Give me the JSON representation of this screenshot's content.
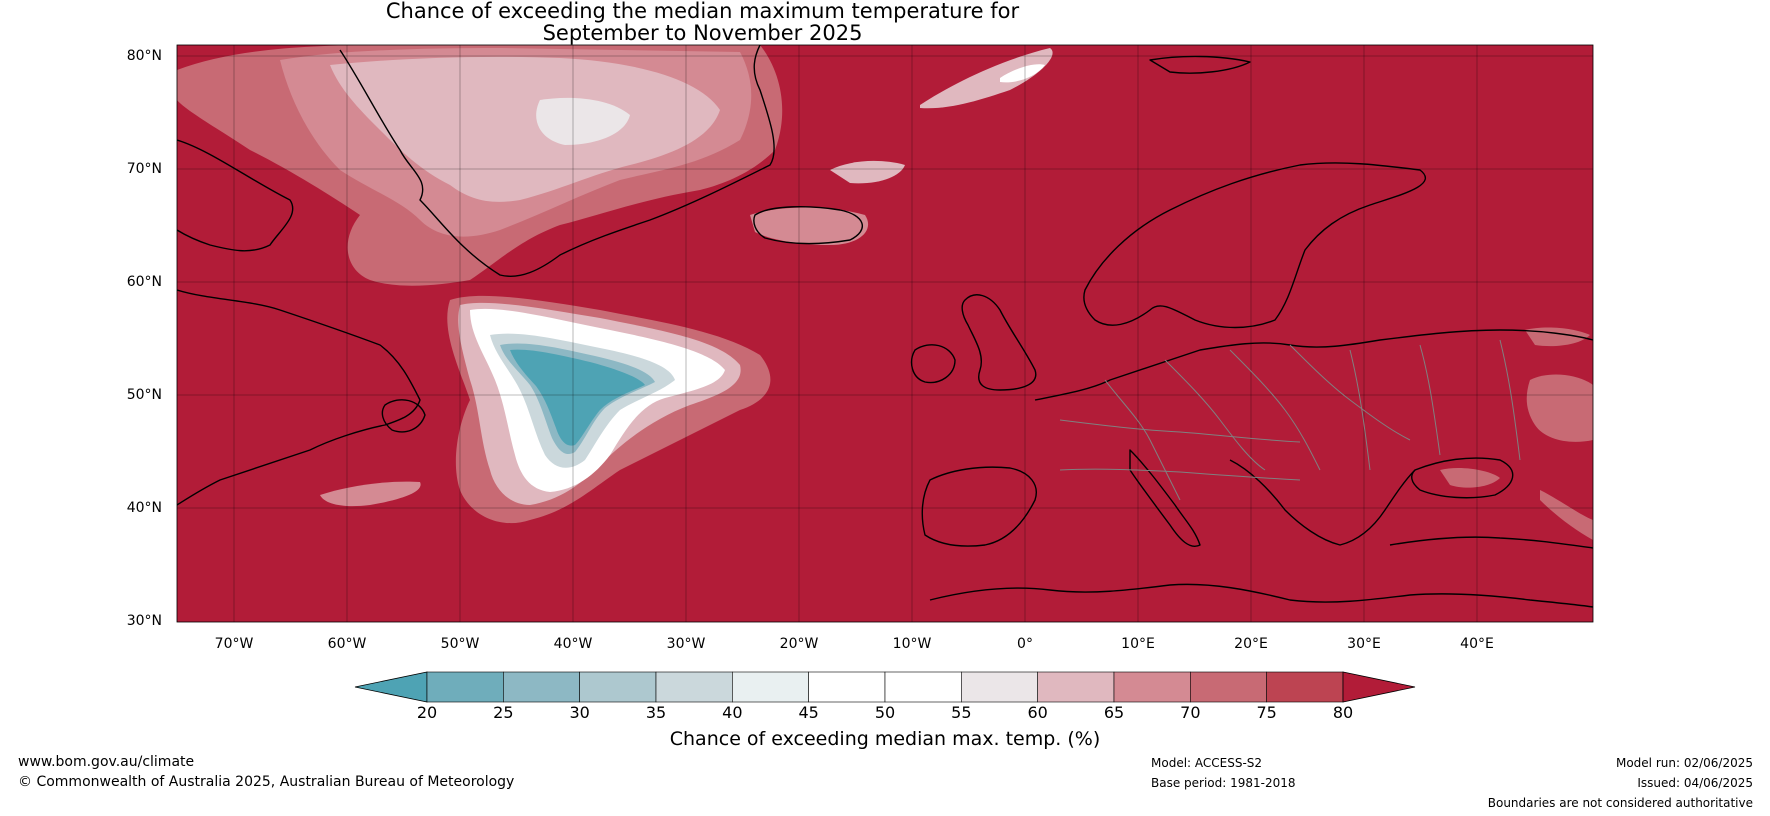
{
  "title": {
    "line1": "Chance of exceeding the median maximum temperature for",
    "line2": "September to November 2025"
  },
  "axes": {
    "lat_labels": [
      "80°N",
      "70°N",
      "60°N",
      "50°N",
      "40°N",
      "30°N"
    ],
    "lon_labels": [
      "70°W",
      "60°W",
      "50°W",
      "40°W",
      "30°W",
      "20°W",
      "10°W",
      "0°",
      "10°E",
      "20°E",
      "30°E",
      "40°E"
    ]
  },
  "colorbar": {
    "ticks": [
      "20",
      "25",
      "30",
      "35",
      "40",
      "45",
      "50",
      "55",
      "60",
      "65",
      "70",
      "75",
      "80"
    ],
    "colors": [
      "#4ea3b4",
      "#6fadbb",
      "#8db8c4",
      "#adc8cf",
      "#cbd8dc",
      "#e9f0f1",
      "#ffffff",
      "#ffffff",
      "#ebe6e8",
      "#e0b8bf",
      "#d48a93",
      "#c86a74",
      "#bd4452",
      "#b21c38"
    ],
    "under_color": "#4ea3b4",
    "over_color": "#b21c38",
    "label": "Chance of exceeding median max. temp. (%)"
  },
  "colors": {
    "high": "#b21c38",
    "mid_high": "#c86a74",
    "pink": "#d48a93",
    "light_pink": "#e0b8bf",
    "white": "#ffffff",
    "light_blue": "#adc8cf",
    "blue": "#4ea3b4",
    "land_outline": "#000000",
    "border": "#808080"
  },
  "footer": {
    "url": "www.bom.gov.au/climate",
    "copyright": "© Commonwealth of Australia 2025, Australian Bureau of Meteorology",
    "model": "Model: ACCESS-S2",
    "base_period": "Base period: 1981-2018",
    "model_run": "Model run: 02/06/2025",
    "issued": "Issued: 04/06/2025",
    "disclaimer": "Boundaries are not considered authoritative"
  }
}
